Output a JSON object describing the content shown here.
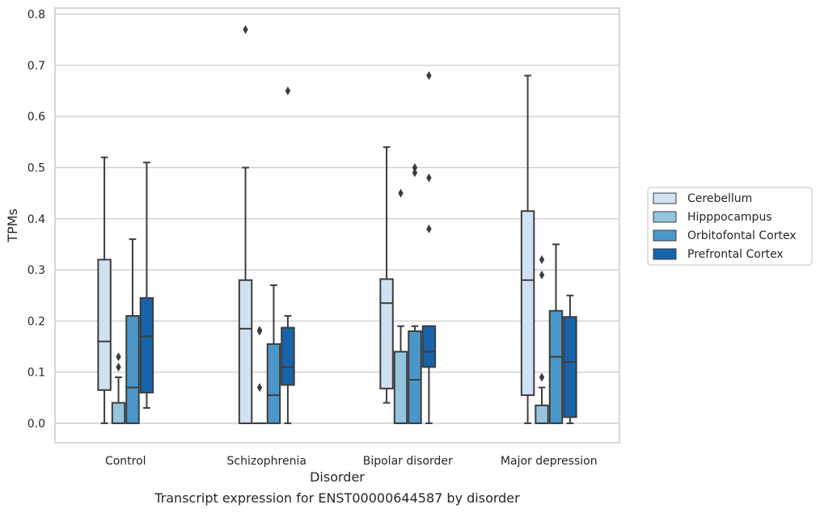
{
  "chart_data": {
    "type": "box",
    "title": "Transcript expression for ENST00000644587 by disorder",
    "xlabel": "Disorder",
    "ylabel": "TPMs",
    "ylim": [
      -0.038,
      0.812
    ],
    "yticks": [
      "0.0",
      "0.1",
      "0.2",
      "0.3",
      "0.4",
      "0.5",
      "0.6",
      "0.7",
      "0.8"
    ],
    "grid": "horizontal",
    "legend_position": "right",
    "categories": [
      "Control",
      "Schizophrenia",
      "Bipolar disorder",
      "Major depression"
    ],
    "series": [
      {
        "name": "Cerebellum",
        "color": "#d0e1f2",
        "boxes": [
          {
            "whislo": 0.0,
            "q1": 0.065,
            "med": 0.16,
            "q3": 0.32,
            "whishi": 0.52,
            "fliers": []
          },
          {
            "whislo": 0.0,
            "q1": 0.0,
            "med": 0.185,
            "q3": 0.28,
            "whishi": 0.5,
            "fliers": [
              0.77
            ]
          },
          {
            "whislo": 0.04,
            "q1": 0.068,
            "med": 0.235,
            "q3": 0.282,
            "whishi": 0.54,
            "fliers": []
          },
          {
            "whislo": 0.0,
            "q1": 0.055,
            "med": 0.28,
            "q3": 0.415,
            "whishi": 0.68,
            "fliers": []
          }
        ]
      },
      {
        "name": "Hipppocampus",
        "color": "#94c4df",
        "boxes": [
          {
            "whislo": 0.0,
            "q1": 0.0,
            "med": 0.0,
            "q3": 0.04,
            "whishi": 0.09,
            "fliers": [
              0.11,
              0.13
            ]
          },
          {
            "whislo": 0.0,
            "q1": 0.0,
            "med": 0.0,
            "q3": 0.0,
            "whishi": 0.0,
            "fliers": [
              0.07,
              0.18,
              0.182
            ]
          },
          {
            "whislo": 0.0,
            "q1": 0.0,
            "med": 0.0,
            "q3": 0.14,
            "whishi": 0.19,
            "fliers": [
              0.45
            ]
          },
          {
            "whislo": 0.0,
            "q1": 0.0,
            "med": 0.0,
            "q3": 0.035,
            "whishi": 0.07,
            "fliers": [
              0.09,
              0.29,
              0.32
            ]
          }
        ]
      },
      {
        "name": "Orbitofontal Cortex",
        "color": "#4b97c9",
        "boxes": [
          {
            "whislo": 0.0,
            "q1": 0.0,
            "med": 0.07,
            "q3": 0.21,
            "whishi": 0.36,
            "fliers": []
          },
          {
            "whislo": 0.0,
            "q1": 0.0,
            "med": 0.055,
            "q3": 0.155,
            "whishi": 0.27,
            "fliers": []
          },
          {
            "whislo": 0.0,
            "q1": 0.0,
            "med": 0.085,
            "q3": 0.18,
            "whishi": 0.19,
            "fliers": [
              0.49,
              0.5
            ]
          },
          {
            "whislo": 0.0,
            "q1": 0.0,
            "med": 0.13,
            "q3": 0.22,
            "whishi": 0.35,
            "fliers": []
          }
        ]
      },
      {
        "name": "Prefrontal Cortex",
        "color": "#1764ab",
        "boxes": [
          {
            "whislo": 0.03,
            "q1": 0.06,
            "med": 0.17,
            "q3": 0.245,
            "whishi": 0.51,
            "fliers": []
          },
          {
            "whislo": 0.0,
            "q1": 0.075,
            "med": 0.11,
            "q3": 0.187,
            "whishi": 0.21,
            "fliers": [
              0.65
            ]
          },
          {
            "whislo": 0.0,
            "q1": 0.11,
            "med": 0.14,
            "q3": 0.19,
            "whishi": 0.19,
            "fliers": [
              0.38,
              0.48,
              0.68
            ]
          },
          {
            "whislo": 0.0,
            "q1": 0.012,
            "med": 0.12,
            "q3": 0.208,
            "whishi": 0.25,
            "fliers": []
          }
        ]
      }
    ]
  }
}
